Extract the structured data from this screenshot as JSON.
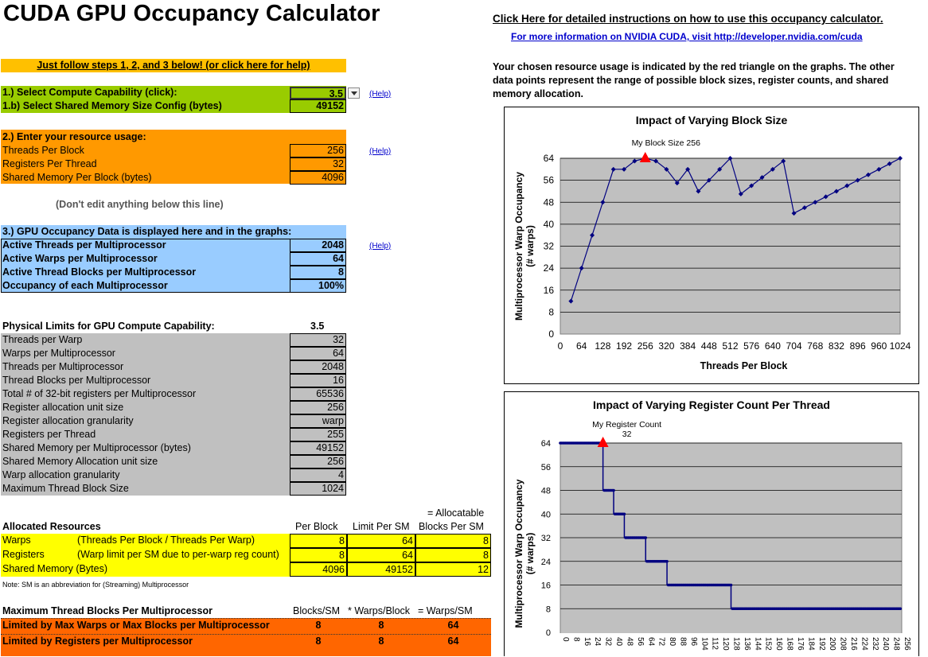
{
  "title": "CUDA GPU Occupancy Calculator",
  "links": {
    "instructions": "Click Here for detailed instructions on how to use this occupancy calculator.",
    "more_info": "For more information on NVIDIA CUDA, visit http://developer.nvidia.com/cuda"
  },
  "description": "Your chosen resource usage is indicated by the red triangle on the graphs.  The other data points represent the range of possible block sizes, register counts, and shared memory allocation.",
  "steps_banner": "Just follow steps 1, 2, and 3 below! (or click here for help)",
  "help_label": "(Help)",
  "step1": {
    "compute_label": "1.) Select Compute Capability (click):",
    "compute_value": "3.5",
    "shmem_label": "1.b) Select Shared Memory Size Config (bytes)",
    "shmem_value": "49152"
  },
  "step2": {
    "header": "2.) Enter your resource usage:",
    "rows": [
      {
        "label": "Threads Per Block",
        "value": "256"
      },
      {
        "label": "Registers Per Thread",
        "value": "32"
      },
      {
        "label": "Shared Memory Per Block (bytes)",
        "value": "4096"
      }
    ]
  },
  "dont_edit": "(Don't edit anything below this line)",
  "step3": {
    "header": "3.) GPU Occupancy Data is displayed here and in the graphs:",
    "rows": [
      {
        "label": "Active Threads per Multiprocessor",
        "value": "2048"
      },
      {
        "label": "Active Warps per Multiprocessor",
        "value": "64"
      },
      {
        "label": "Active Thread Blocks per Multiprocessor",
        "value": "8"
      },
      {
        "label": "Occupancy of each Multiprocessor",
        "value": "100%"
      }
    ]
  },
  "limits": {
    "header": "Physical Limits for GPU Compute Capability:",
    "capability": "3.5",
    "rows": [
      {
        "label": "Threads per Warp",
        "value": "32"
      },
      {
        "label": "Warps per Multiprocessor",
        "value": "64"
      },
      {
        "label": "Threads per Multiprocessor",
        "value": "2048"
      },
      {
        "label": "Thread Blocks per Multiprocessor",
        "value": "16"
      },
      {
        "label": "Total # of 32-bit registers per Multiprocessor",
        "value": "65536"
      },
      {
        "label": "Register allocation unit size",
        "value": "256"
      },
      {
        "label": "Register allocation granularity",
        "value": "warp"
      },
      {
        "label": "Registers per Thread",
        "value": "255"
      },
      {
        "label": "Shared Memory per Multiprocessor (bytes)",
        "value": "49152"
      },
      {
        "label": "Shared Memory Allocation unit size",
        "value": "256"
      },
      {
        "label": "Warp allocation granularity",
        "value": "4"
      },
      {
        "label": "Maximum Thread Block Size",
        "value": "1024"
      }
    ]
  },
  "allocated": {
    "eq_label": "= Allocatable",
    "header": "Allocated Resources",
    "col_per_block": "Per Block",
    "col_limit": "Limit Per SM",
    "col_blocks": "Blocks Per SM",
    "rows": [
      {
        "label": "Warps",
        "desc": "(Threads Per Block / Threads Per Warp)",
        "per_block": "8",
        "limit": "64",
        "blocks": "8"
      },
      {
        "label": "Registers",
        "desc": "(Warp limit per SM due to per-warp reg count)",
        "per_block": "8",
        "limit": "64",
        "blocks": "8"
      },
      {
        "label": "Shared Memory (Bytes)",
        "desc": "",
        "per_block": "4096",
        "limit": "49152",
        "blocks": "12"
      }
    ],
    "note": "Note: SM is an abbreviation for (Streaming) Multiprocessor"
  },
  "max_blocks": {
    "header": "Maximum Thread Blocks Per Multiprocessor",
    "col1": "Blocks/SM",
    "col2": "* Warps/Block",
    "col3": "= Warps/SM",
    "rows": [
      {
        "label": "Limited by Max Warps or Max Blocks per Multiprocessor",
        "blocks": "8",
        "warps_block": "8",
        "warps_sm": "64"
      },
      {
        "label": "Limited by Registers per Multiprocessor",
        "blocks": "8",
        "warps_block": "8",
        "warps_sm": "64"
      }
    ]
  },
  "colors": {
    "yellow_banner": "#FFC000",
    "green": "#99CC00",
    "orange": "#FF9900",
    "blue": "#99CCFF",
    "gray": "#C0C0C0",
    "yellow": "#FFFF00",
    "dark_orange": "#FF6600",
    "plot_bg": "#C0C0C0",
    "series": "#000080",
    "marker": "#FF0000"
  },
  "chart_data": [
    {
      "type": "line",
      "title": "Impact of Varying Block Size",
      "xlabel": "Threads Per Block",
      "ylabel": "Multiprocessor Warp Occupancy",
      "ylabel2": "(# warps)",
      "marker_label": "My Block Size 256",
      "marker": {
        "x": 256,
        "y": 64
      },
      "xlim": [
        0,
        1024
      ],
      "ylim": [
        0,
        64
      ],
      "xticks": [
        0,
        64,
        128,
        192,
        256,
        320,
        384,
        448,
        512,
        576,
        640,
        704,
        768,
        832,
        896,
        960,
        1024
      ],
      "yticks": [
        0,
        8,
        16,
        24,
        32,
        40,
        48,
        56,
        64
      ],
      "x": [
        32,
        64,
        96,
        128,
        160,
        192,
        224,
        256,
        288,
        320,
        352,
        384,
        416,
        448,
        480,
        512,
        544,
        576,
        608,
        640,
        672,
        704,
        736,
        768,
        800,
        832,
        864,
        896,
        928,
        960,
        992,
        1024
      ],
      "y": [
        12,
        24,
        36,
        48,
        60,
        60,
        63,
        64,
        63,
        60,
        55,
        60,
        52,
        56,
        60,
        64,
        51,
        54,
        57,
        60,
        63,
        44,
        46,
        48,
        50,
        52,
        54,
        56,
        58,
        60,
        62,
        64
      ]
    },
    {
      "type": "line",
      "title": "Impact of Varying Register Count Per Thread",
      "xlabel": "",
      "ylabel": "Multiprocessor Warp Occupancy",
      "ylabel2": "(# warps)",
      "marker_label": "My Register Count",
      "marker_label2": "32",
      "marker": {
        "x": 32,
        "y": 64
      },
      "xlim": [
        0,
        256
      ],
      "ylim": [
        0,
        64
      ],
      "xticks": [
        "0",
        "8",
        "16",
        "24",
        "32",
        "40",
        "48",
        "56",
        "64",
        "72",
        "80",
        "88",
        "96",
        "104",
        "112",
        "120",
        "128",
        "136",
        "144",
        "152",
        "160",
        "168",
        "176",
        "184",
        "192",
        "200",
        "208",
        "216",
        "224",
        "232",
        "240",
        "248",
        "256"
      ],
      "yticks": [
        0,
        8,
        16,
        24,
        32,
        40,
        48,
        56,
        64
      ],
      "steps": [
        {
          "from": 0,
          "to": 32,
          "y": 64
        },
        {
          "from": 33,
          "to": 40,
          "y": 48
        },
        {
          "from": 41,
          "to": 48,
          "y": 40
        },
        {
          "from": 49,
          "to": 64,
          "y": 32
        },
        {
          "from": 65,
          "to": 80,
          "y": 24
        },
        {
          "from": 81,
          "to": 128,
          "y": 16
        },
        {
          "from": 129,
          "to": 255,
          "y": 8
        }
      ]
    }
  ]
}
